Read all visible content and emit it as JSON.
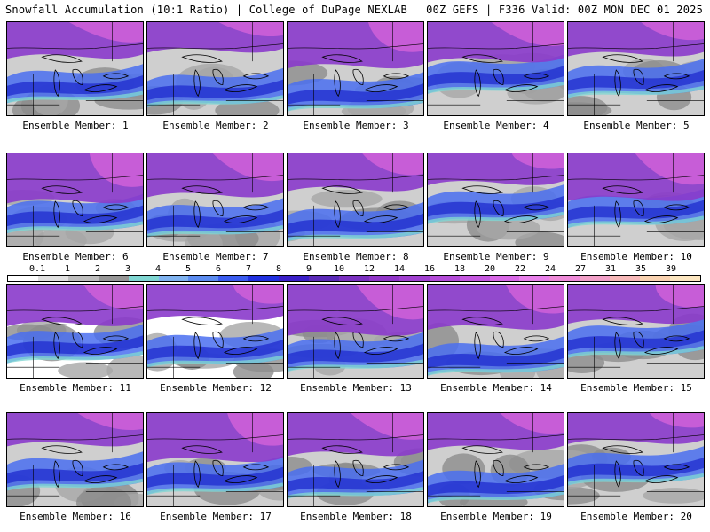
{
  "header": {
    "left": "Snowfall Accumulation (10:1 Ratio) | College of DuPage NEXLAB",
    "right": "00Z GEFS | F336 Valid: 00Z MON DEC 01 2025"
  },
  "members": [
    {
      "label": "Ensemble Member: 1"
    },
    {
      "label": "Ensemble Member: 2"
    },
    {
      "label": "Ensemble Member: 3"
    },
    {
      "label": "Ensemble Member: 4"
    },
    {
      "label": "Ensemble Member: 5"
    },
    {
      "label": "Ensemble Member: 6"
    },
    {
      "label": "Ensemble Member: 7"
    },
    {
      "label": "Ensemble Member: 8"
    },
    {
      "label": "Ensemble Member: 9"
    },
    {
      "label": "Ensemble Member: 10"
    },
    {
      "label": "Ensemble Member: 11"
    },
    {
      "label": "Ensemble Member: 12"
    },
    {
      "label": "Ensemble Member: 13"
    },
    {
      "label": "Ensemble Member: 14"
    },
    {
      "label": "Ensemble Member: 15"
    },
    {
      "label": "Ensemble Member: 16"
    },
    {
      "label": "Ensemble Member: 17"
    },
    {
      "label": "Ensemble Member: 18"
    },
    {
      "label": "Ensemble Member: 19"
    },
    {
      "label": "Ensemble Member: 20"
    }
  ],
  "colorbar": {
    "ticks": [
      "0.1",
      "1",
      "2",
      "3",
      "4",
      "5",
      "6",
      "7",
      "8",
      "9",
      "10",
      "12",
      "14",
      "16",
      "18",
      "20",
      "22",
      "24",
      "27",
      "31",
      "35",
      "39"
    ],
    "colors": [
      "#ffffff",
      "#e0e0e0",
      "#bdbdbd",
      "#969696",
      "#7fd6d2",
      "#7fb3f0",
      "#5b8cf0",
      "#3a5cf0",
      "#2030e0",
      "#3a1fc8",
      "#5a2ab8",
      "#7a30c0",
      "#9036c8",
      "#a040d0",
      "#b34bd8",
      "#c558e0",
      "#d868e6",
      "#e880ea",
      "#ee8ad8",
      "#f2a0c8",
      "#f6b8b8",
      "#f9d2b0",
      "#fce6c0"
    ]
  }
}
